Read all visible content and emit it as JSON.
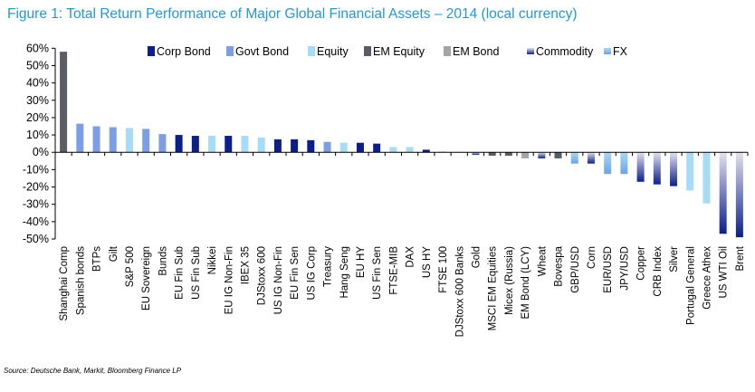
{
  "chart_data": {
    "type": "bar",
    "title": "Figure 1: Total Return Performance of Major Global Financial Assets – 2014 (local currency)",
    "source": "Source: Deutsche Bank, Markit, Bloomberg Finance LP",
    "xlabel": "",
    "ylabel": "",
    "ylim": [
      -50,
      60
    ],
    "yticks": [
      "60%",
      "50%",
      "40%",
      "30%",
      "20%",
      "10%",
      "0%",
      "-10%",
      "-20%",
      "-30%",
      "-40%",
      "-50%"
    ],
    "grid": false,
    "legend_position": "top",
    "legend": [
      {
        "name": "Corp Bond",
        "key": "corp"
      },
      {
        "name": "Govt Bond",
        "key": "govt"
      },
      {
        "name": "Equity",
        "key": "equity"
      },
      {
        "name": "EM Equity",
        "key": "emeq"
      },
      {
        "name": "EM Bond",
        "key": "embond"
      },
      {
        "name": "Commodity",
        "key": "commodity"
      },
      {
        "name": "FX",
        "key": "fx"
      }
    ],
    "colors": {
      "corp": "#0b1f8c",
      "govt": "#7b9ee6",
      "equity": "#a6dcf5",
      "emeq": "#5a5c66",
      "embond": "#a3a5ab",
      "commodity": [
        "#e2e2ef",
        "#0b1f8c"
      ],
      "fx": [
        "#a8d8f6",
        "#6aa4ea"
      ]
    },
    "categories": [
      "Shanghai Comp",
      "Spanish bonds",
      "BTPs",
      "Gilt",
      "S&P 500",
      "EU Sovereign",
      "Bunds",
      "EU Fin Sub",
      "US Fin Sub",
      "Nikkei",
      "EU IG Non-Fin",
      "IBEX 35",
      "DJStoxx 600",
      "US IG Non-Fin",
      "EU Fin Sen",
      "US IG Corp",
      "Treasury",
      "Hang Seng",
      "EU HY",
      "US Fin Sen",
      "FTSE-MIB",
      "DAX",
      "US HY",
      "FTSE 100",
      "DJStoxx 600 Banks",
      "Gold",
      "MSCI EM Equities",
      "Micex (Russia)",
      "EM Bond (LCY)",
      "Wheat",
      "Bovespa",
      "GBP/USD",
      "Corn",
      "EUR/USD",
      "JPY/USD",
      "Copper",
      "CRB Index",
      "Silver",
      "Portugal General",
      "Greece Athex",
      "US WTI Oil",
      "Brent"
    ],
    "values": [
      58,
      16.5,
      15,
      14.5,
      14,
      13.5,
      10.5,
      10,
      9.5,
      9.5,
      9.5,
      9.5,
      8.5,
      7.5,
      7.5,
      7,
      6,
      5.5,
      5.5,
      5,
      3,
      3,
      1.5,
      0.5,
      0.2,
      -1.5,
      -2,
      -2,
      -3.5,
      -3.5,
      -3.5,
      -6.5,
      -6.5,
      -12.5,
      -12.5,
      -17,
      -18.5,
      -19.5,
      -22,
      -29.5,
      -47,
      -49
    ],
    "asset_class": [
      "emeq",
      "govt",
      "govt",
      "govt",
      "equity",
      "govt",
      "govt",
      "corp",
      "corp",
      "equity",
      "corp",
      "equity",
      "equity",
      "corp",
      "corp",
      "corp",
      "govt",
      "equity",
      "corp",
      "corp",
      "equity",
      "equity",
      "corp",
      "equity",
      "equity",
      "commodity",
      "emeq",
      "emeq",
      "embond",
      "commodity",
      "emeq",
      "fx",
      "commodity",
      "fx",
      "fx",
      "commodity",
      "commodity",
      "commodity",
      "equity",
      "equity",
      "commodity",
      "commodity"
    ]
  }
}
